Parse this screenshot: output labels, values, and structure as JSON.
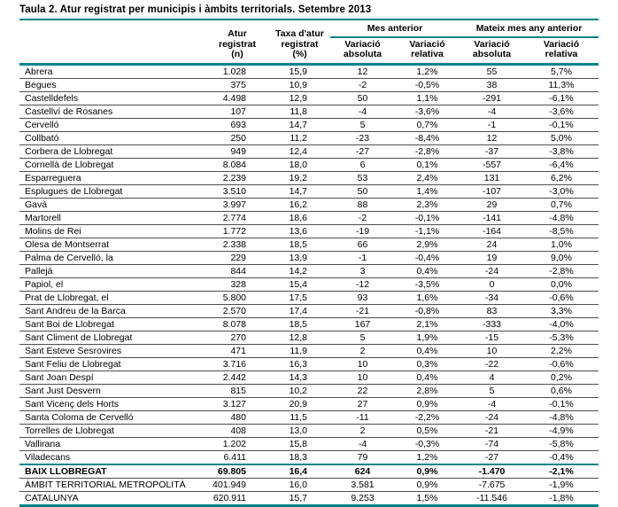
{
  "title": "Taula 2. Atur registrat per municipis i àmbits territorials. Setembre 2013",
  "colors": {
    "accent_teal": "#008486",
    "row_line": "#4d4d4d"
  },
  "header": {
    "col_atur": "Atur\nregistrat\n(n)",
    "col_taxa": "Taxa d'atur\nregistrat\n(%)",
    "group_prev_month": "Mes anterior",
    "group_prev_year": "Mateix mes any anterior",
    "sub_abs": "Variació\nabsoluta",
    "sub_rel": "Variació\nrelativa"
  },
  "rows": [
    {
      "name": "Abrera",
      "values": [
        "1.028",
        "15,9",
        "12",
        "1,2%",
        "55",
        "5,7%"
      ]
    },
    {
      "name": "Begues",
      "values": [
        "375",
        "10,9",
        "-2",
        "-0,5%",
        "38",
        "11,3%"
      ]
    },
    {
      "name": "Castelldefels",
      "values": [
        "4.498",
        "12,9",
        "50",
        "1,1%",
        "-291",
        "-6,1%"
      ]
    },
    {
      "name": "Castellví de Rosanes",
      "values": [
        "107",
        "11,8",
        "-4",
        "-3,6%",
        "-4",
        "-3,6%"
      ]
    },
    {
      "name": "Cervelló",
      "values": [
        "693",
        "14,7",
        "5",
        "0,7%",
        "-1",
        "-0,1%"
      ]
    },
    {
      "name": "Collbató",
      "values": [
        "250",
        "11,2",
        "-23",
        "-8,4%",
        "12",
        "5,0%"
      ]
    },
    {
      "name": "Corbera de Llobregat",
      "values": [
        "949",
        "12,4",
        "-27",
        "-2,8%",
        "-37",
        "-3,8%"
      ]
    },
    {
      "name": "Cornellà de Llobregat",
      "values": [
        "8.084",
        "18,0",
        "6",
        "0,1%",
        "-557",
        "-6,4%"
      ]
    },
    {
      "name": "Esparreguera",
      "values": [
        "2.239",
        "19,2",
        "53",
        "2,4%",
        "131",
        "6,2%"
      ]
    },
    {
      "name": "Esplugues de Llobregat",
      "values": [
        "3.510",
        "14,7",
        "50",
        "1,4%",
        "-107",
        "-3,0%"
      ]
    },
    {
      "name": "Gavà",
      "values": [
        "3.997",
        "16,2",
        "88",
        "2,3%",
        "29",
        "0,7%"
      ]
    },
    {
      "name": "Martorell",
      "values": [
        "2.774",
        "18,6",
        "-2",
        "-0,1%",
        "-141",
        "-4,8%"
      ]
    },
    {
      "name": "Molins de Rei",
      "values": [
        "1.772",
        "13,6",
        "-19",
        "-1,1%",
        "-164",
        "-8,5%"
      ]
    },
    {
      "name": "Olesa de Montserrat",
      "values": [
        "2.338",
        "18,5",
        "66",
        "2,9%",
        "24",
        "1,0%"
      ]
    },
    {
      "name": "Palma de Cervelló, la",
      "values": [
        "229",
        "13,9",
        "-1",
        "-0,4%",
        "19",
        "9,0%"
      ]
    },
    {
      "name": "Pallejà",
      "values": [
        "844",
        "14,2",
        "3",
        "0,4%",
        "-24",
        "-2,8%"
      ]
    },
    {
      "name": "Papiol, el",
      "values": [
        "328",
        "15,4",
        "-12",
        "-3,5%",
        "0",
        "0,0%"
      ]
    },
    {
      "name": "Prat de Llobregat, el",
      "values": [
        "5.800",
        "17,5",
        "93",
        "1,6%",
        "-34",
        "-0,6%"
      ]
    },
    {
      "name": "Sant Andreu de la Barca",
      "values": [
        "2.570",
        "17,4",
        "-21",
        "-0,8%",
        "83",
        "3,3%"
      ]
    },
    {
      "name": "Sant Boi de Llobregat",
      "values": [
        "8.078",
        "18,5",
        "167",
        "2,1%",
        "-333",
        "-4,0%"
      ]
    },
    {
      "name": "Sant Climent de Llobregat",
      "values": [
        "270",
        "12,8",
        "5",
        "1,9%",
        "-15",
        "-5,3%"
      ]
    },
    {
      "name": "Sant Esteve Sesrovires",
      "values": [
        "471",
        "11,9",
        "2",
        "0,4%",
        "10",
        "2,2%"
      ]
    },
    {
      "name": "Sant Feliu de Llobregat",
      "values": [
        "3.716",
        "16,3",
        "10",
        "0,3%",
        "-22",
        "-0,6%"
      ]
    },
    {
      "name": "Sant Joan Despí",
      "values": [
        "2.442",
        "14,3",
        "10",
        "0,4%",
        "4",
        "0,2%"
      ]
    },
    {
      "name": "Sant Just Desvern",
      "values": [
        "815",
        "10,2",
        "22",
        "2,8%",
        "5",
        "0,6%"
      ]
    },
    {
      "name": "Sant Vicenç dels Horts",
      "values": [
        "3.127",
        "20,9",
        "27",
        "0,9%",
        "-4",
        "-0,1%"
      ]
    },
    {
      "name": "Santa Coloma de Cervelló",
      "values": [
        "480",
        "11,5",
        "-11",
        "-2,2%",
        "-24",
        "-4,8%"
      ]
    },
    {
      "name": "Torrelles de Llobregat",
      "values": [
        "408",
        "13,0",
        "2",
        "0,5%",
        "-21",
        "-4,9%"
      ]
    },
    {
      "name": "Vallirana",
      "values": [
        "1.202",
        "15,8",
        "-4",
        "-0,3%",
        "-74",
        "-5,8%"
      ]
    },
    {
      "name": "Viladecans",
      "values": [
        "6.411",
        "18,3",
        "79",
        "1,2%",
        "-27",
        "-0,4%"
      ]
    }
  ],
  "totals": [
    {
      "name": "BAIX LLOBREGAT",
      "values": [
        "69.805",
        "16,4",
        "624",
        "0,9%",
        "-1.470",
        "-2,1%"
      ]
    },
    {
      "name": "ÀMBIT TERRITORIAL METROPOLITÀ",
      "values": [
        "401.949",
        "16,0",
        "3.581",
        "0,9%",
        "-7.675",
        "-1,9%"
      ]
    },
    {
      "name": "CATALUNYA",
      "values": [
        "620.911",
        "15,7",
        "9.253",
        "1,5%",
        "-11.546",
        "-1,8%"
      ]
    }
  ]
}
